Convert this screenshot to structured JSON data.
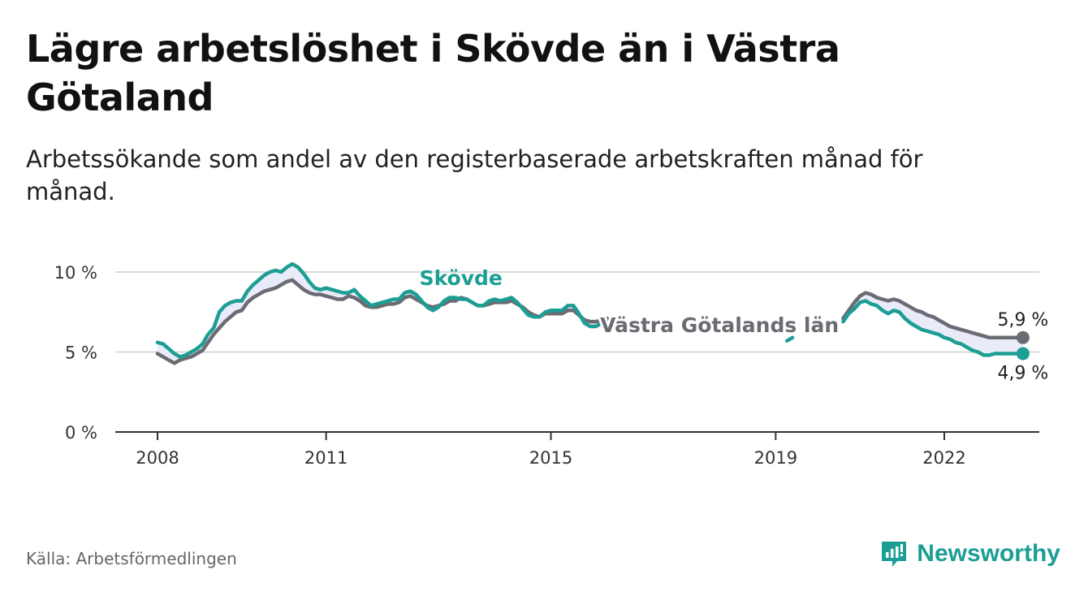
{
  "header": {
    "title": "Lägre arbetslöshet i Skövde än i Västra Götaland",
    "subtitle": "Arbetssökande som andel av den registerbaserade arbetskraften månad för månad."
  },
  "footer": {
    "source": "Källa: Arbetsförmedlingen",
    "brand": "Newsworthy"
  },
  "colors": {
    "skovde": "#1c9e94",
    "vgl": "#6b6b73",
    "band": "#e9ecf8",
    "grid": "#d9d9d9",
    "axis": "#333333",
    "brand": "#1c9e94"
  },
  "chart_data": {
    "type": "line",
    "title": "Lägre arbetslöshet i Skövde än i Västra Götaland",
    "xlabel": "",
    "ylabel": "",
    "ylim": [
      0,
      10
    ],
    "xlim": [
      2007.3,
      2023.6
    ],
    "yticks": [
      {
        "value": 0,
        "label": "0 %"
      },
      {
        "value": 5,
        "label": "5 %"
      },
      {
        "value": 10,
        "label": "10 %"
      }
    ],
    "xticks": [
      {
        "value": 2008,
        "label": "2008"
      },
      {
        "value": 2011,
        "label": "2011"
      },
      {
        "value": 2015,
        "label": "2015"
      },
      {
        "value": 2019,
        "label": "2019"
      },
      {
        "value": 2022,
        "label": "2022"
      }
    ],
    "series": [
      {
        "name": "Skövde",
        "color": "#1c9e94",
        "segments": [
          [
            [
              2008.0,
              5.6
            ],
            [
              2008.1,
              5.5
            ],
            [
              2008.2,
              5.2
            ],
            [
              2008.3,
              4.9
            ],
            [
              2008.4,
              4.7
            ],
            [
              2008.5,
              4.8
            ],
            [
              2008.6,
              5.0
            ],
            [
              2008.7,
              5.2
            ],
            [
              2008.8,
              5.5
            ],
            [
              2008.9,
              6.1
            ],
            [
              2009.0,
              6.5
            ],
            [
              2009.1,
              7.5
            ],
            [
              2009.2,
              7.9
            ],
            [
              2009.3,
              8.1
            ],
            [
              2009.4,
              8.2
            ],
            [
              2009.5,
              8.2
            ],
            [
              2009.6,
              8.8
            ],
            [
              2009.7,
              9.2
            ],
            [
              2009.8,
              9.5
            ],
            [
              2009.9,
              9.8
            ],
            [
              2010.0,
              10.0
            ],
            [
              2010.1,
              10.1
            ],
            [
              2010.2,
              10.0
            ],
            [
              2010.3,
              10.3
            ],
            [
              2010.4,
              10.5
            ],
            [
              2010.5,
              10.3
            ],
            [
              2010.6,
              9.9
            ],
            [
              2010.7,
              9.4
            ],
            [
              2010.8,
              9.0
            ],
            [
              2010.9,
              8.9
            ],
            [
              2011.0,
              9.0
            ],
            [
              2011.1,
              8.9
            ],
            [
              2011.2,
              8.8
            ],
            [
              2011.3,
              8.7
            ],
            [
              2011.4,
              8.7
            ],
            [
              2011.5,
              8.9
            ],
            [
              2011.6,
              8.5
            ],
            [
              2011.7,
              8.2
            ],
            [
              2011.8,
              7.9
            ],
            [
              2011.9,
              8.0
            ],
            [
              2012.0,
              8.1
            ],
            [
              2012.1,
              8.2
            ],
            [
              2012.2,
              8.3
            ],
            [
              2012.3,
              8.3
            ],
            [
              2012.4,
              8.7
            ],
            [
              2012.5,
              8.8
            ],
            [
              2012.6,
              8.6
            ],
            [
              2012.7,
              8.2
            ],
            [
              2012.8,
              7.8
            ],
            [
              2012.9,
              7.6
            ],
            [
              2013.0,
              7.8
            ],
            [
              2013.1,
              8.2
            ],
            [
              2013.2,
              8.4
            ],
            [
              2013.3,
              8.4
            ],
            [
              2013.4,
              8.3
            ],
            [
              2013.5,
              8.3
            ],
            [
              2013.6,
              8.1
            ],
            [
              2013.7,
              7.9
            ],
            [
              2013.8,
              7.9
            ],
            [
              2013.9,
              8.2
            ],
            [
              2014.0,
              8.3
            ],
            [
              2014.1,
              8.2
            ],
            [
              2014.2,
              8.3
            ],
            [
              2014.3,
              8.4
            ],
            [
              2014.4,
              8.1
            ],
            [
              2014.5,
              7.7
            ],
            [
              2014.6,
              7.3
            ],
            [
              2014.7,
              7.2
            ],
            [
              2014.8,
              7.2
            ],
            [
              2014.9,
              7.5
            ],
            [
              2015.0,
              7.6
            ],
            [
              2015.1,
              7.6
            ],
            [
              2015.2,
              7.6
            ],
            [
              2015.3,
              7.9
            ],
            [
              2015.4,
              7.9
            ],
            [
              2015.5,
              7.4
            ],
            [
              2015.6,
              6.8
            ],
            [
              2015.7,
              6.6
            ],
            [
              2015.8,
              6.6
            ],
            [
              2015.9,
              6.8
            ],
            [
              2016.0,
              6.9
            ]
          ],
          [
            [
              2019.2,
              5.7
            ],
            [
              2019.3,
              5.9
            ]
          ],
          [
            [
              2020.2,
              6.9
            ],
            [
              2020.3,
              7.4
            ],
            [
              2020.4,
              7.7
            ],
            [
              2020.5,
              8.1
            ],
            [
              2020.6,
              8.2
            ],
            [
              2020.7,
              8.0
            ],
            [
              2020.8,
              7.9
            ],
            [
              2020.9,
              7.6
            ],
            [
              2021.0,
              7.4
            ],
            [
              2021.1,
              7.6
            ],
            [
              2021.2,
              7.5
            ],
            [
              2021.3,
              7.1
            ],
            [
              2021.4,
              6.8
            ],
            [
              2021.5,
              6.6
            ],
            [
              2021.6,
              6.4
            ],
            [
              2021.7,
              6.3
            ],
            [
              2021.8,
              6.2
            ],
            [
              2021.9,
              6.1
            ],
            [
              2022.0,
              5.9
            ],
            [
              2022.1,
              5.8
            ],
            [
              2022.2,
              5.6
            ],
            [
              2022.3,
              5.5
            ],
            [
              2022.4,
              5.3
            ],
            [
              2022.5,
              5.1
            ],
            [
              2022.6,
              5.0
            ],
            [
              2022.7,
              4.8
            ],
            [
              2022.8,
              4.8
            ],
            [
              2022.9,
              4.9
            ],
            [
              2023.0,
              4.9
            ],
            [
              2023.1,
              4.9
            ],
            [
              2023.2,
              4.9
            ],
            [
              2023.3,
              4.9
            ],
            [
              2023.4,
              4.9
            ]
          ]
        ]
      },
      {
        "name": "Västra Götalands län",
        "color": "#6b6b73",
        "segments": [
          [
            [
              2008.0,
              4.9
            ],
            [
              2008.1,
              4.7
            ],
            [
              2008.2,
              4.5
            ],
            [
              2008.3,
              4.3
            ],
            [
              2008.4,
              4.5
            ],
            [
              2008.5,
              4.6
            ],
            [
              2008.6,
              4.7
            ],
            [
              2008.7,
              4.9
            ],
            [
              2008.8,
              5.1
            ],
            [
              2008.9,
              5.6
            ],
            [
              2009.0,
              6.1
            ],
            [
              2009.1,
              6.5
            ],
            [
              2009.2,
              6.9
            ],
            [
              2009.3,
              7.2
            ],
            [
              2009.4,
              7.5
            ],
            [
              2009.5,
              7.6
            ],
            [
              2009.6,
              8.1
            ],
            [
              2009.7,
              8.4
            ],
            [
              2009.8,
              8.6
            ],
            [
              2009.9,
              8.8
            ],
            [
              2010.0,
              8.9
            ],
            [
              2010.1,
              9.0
            ],
            [
              2010.2,
              9.2
            ],
            [
              2010.3,
              9.4
            ],
            [
              2010.4,
              9.5
            ],
            [
              2010.5,
              9.2
            ],
            [
              2010.6,
              8.9
            ],
            [
              2010.7,
              8.7
            ],
            [
              2010.8,
              8.6
            ],
            [
              2010.9,
              8.6
            ],
            [
              2011.0,
              8.5
            ],
            [
              2011.1,
              8.4
            ],
            [
              2011.2,
              8.3
            ],
            [
              2011.3,
              8.3
            ],
            [
              2011.4,
              8.5
            ],
            [
              2011.5,
              8.4
            ],
            [
              2011.6,
              8.2
            ],
            [
              2011.7,
              7.9
            ],
            [
              2011.8,
              7.8
            ],
            [
              2011.9,
              7.8
            ],
            [
              2012.0,
              7.9
            ],
            [
              2012.1,
              8.0
            ],
            [
              2012.2,
              8.0
            ],
            [
              2012.3,
              8.1
            ],
            [
              2012.4,
              8.4
            ],
            [
              2012.5,
              8.5
            ],
            [
              2012.6,
              8.3
            ],
            [
              2012.7,
              8.1
            ],
            [
              2012.8,
              7.9
            ],
            [
              2012.9,
              7.8
            ],
            [
              2013.0,
              7.9
            ],
            [
              2013.1,
              8.0
            ],
            [
              2013.2,
              8.2
            ],
            [
              2013.3,
              8.2
            ],
            [
              2013.4,
              8.4
            ],
            [
              2013.5,
              8.3
            ],
            [
              2013.6,
              8.1
            ],
            [
              2013.7,
              7.9
            ],
            [
              2013.8,
              7.9
            ],
            [
              2013.9,
              8.0
            ],
            [
              2014.0,
              8.1
            ],
            [
              2014.1,
              8.1
            ],
            [
              2014.2,
              8.1
            ],
            [
              2014.3,
              8.2
            ],
            [
              2014.4,
              8.0
            ],
            [
              2014.5,
              7.8
            ],
            [
              2014.6,
              7.5
            ],
            [
              2014.7,
              7.3
            ],
            [
              2014.8,
              7.2
            ],
            [
              2014.9,
              7.4
            ],
            [
              2015.0,
              7.4
            ],
            [
              2015.1,
              7.4
            ],
            [
              2015.2,
              7.4
            ],
            [
              2015.3,
              7.6
            ],
            [
              2015.4,
              7.6
            ],
            [
              2015.5,
              7.3
            ],
            [
              2015.6,
              7.0
            ],
            [
              2015.7,
              6.9
            ],
            [
              2015.8,
              6.9
            ],
            [
              2015.9,
              7.0
            ],
            [
              2016.0,
              7.1
            ]
          ],
          [
            [
              2020.2,
              7.1
            ],
            [
              2020.3,
              7.6
            ],
            [
              2020.4,
              8.1
            ],
            [
              2020.5,
              8.5
            ],
            [
              2020.6,
              8.7
            ],
            [
              2020.7,
              8.6
            ],
            [
              2020.8,
              8.4
            ],
            [
              2020.9,
              8.3
            ],
            [
              2021.0,
              8.2
            ],
            [
              2021.1,
              8.3
            ],
            [
              2021.2,
              8.2
            ],
            [
              2021.3,
              8.0
            ],
            [
              2021.4,
              7.8
            ],
            [
              2021.5,
              7.6
            ],
            [
              2021.6,
              7.5
            ],
            [
              2021.7,
              7.3
            ],
            [
              2021.8,
              7.2
            ],
            [
              2021.9,
              7.0
            ],
            [
              2022.0,
              6.8
            ],
            [
              2022.1,
              6.6
            ],
            [
              2022.2,
              6.5
            ],
            [
              2022.3,
              6.4
            ],
            [
              2022.4,
              6.3
            ],
            [
              2022.5,
              6.2
            ],
            [
              2022.6,
              6.1
            ],
            [
              2022.7,
              6.0
            ],
            [
              2022.8,
              5.9
            ],
            [
              2022.9,
              5.9
            ],
            [
              2023.0,
              5.9
            ],
            [
              2023.1,
              5.9
            ],
            [
              2023.2,
              5.9
            ],
            [
              2023.3,
              5.9
            ],
            [
              2023.4,
              5.9
            ]
          ]
        ]
      }
    ],
    "series_labels": {
      "skovde": "Skövde",
      "vgl": "Västra Götalands län"
    },
    "end_labels": {
      "vgl": {
        "value": 5.9,
        "label": "5,9 %"
      },
      "skovde": {
        "value": 4.9,
        "label": "4,9 %"
      }
    }
  }
}
